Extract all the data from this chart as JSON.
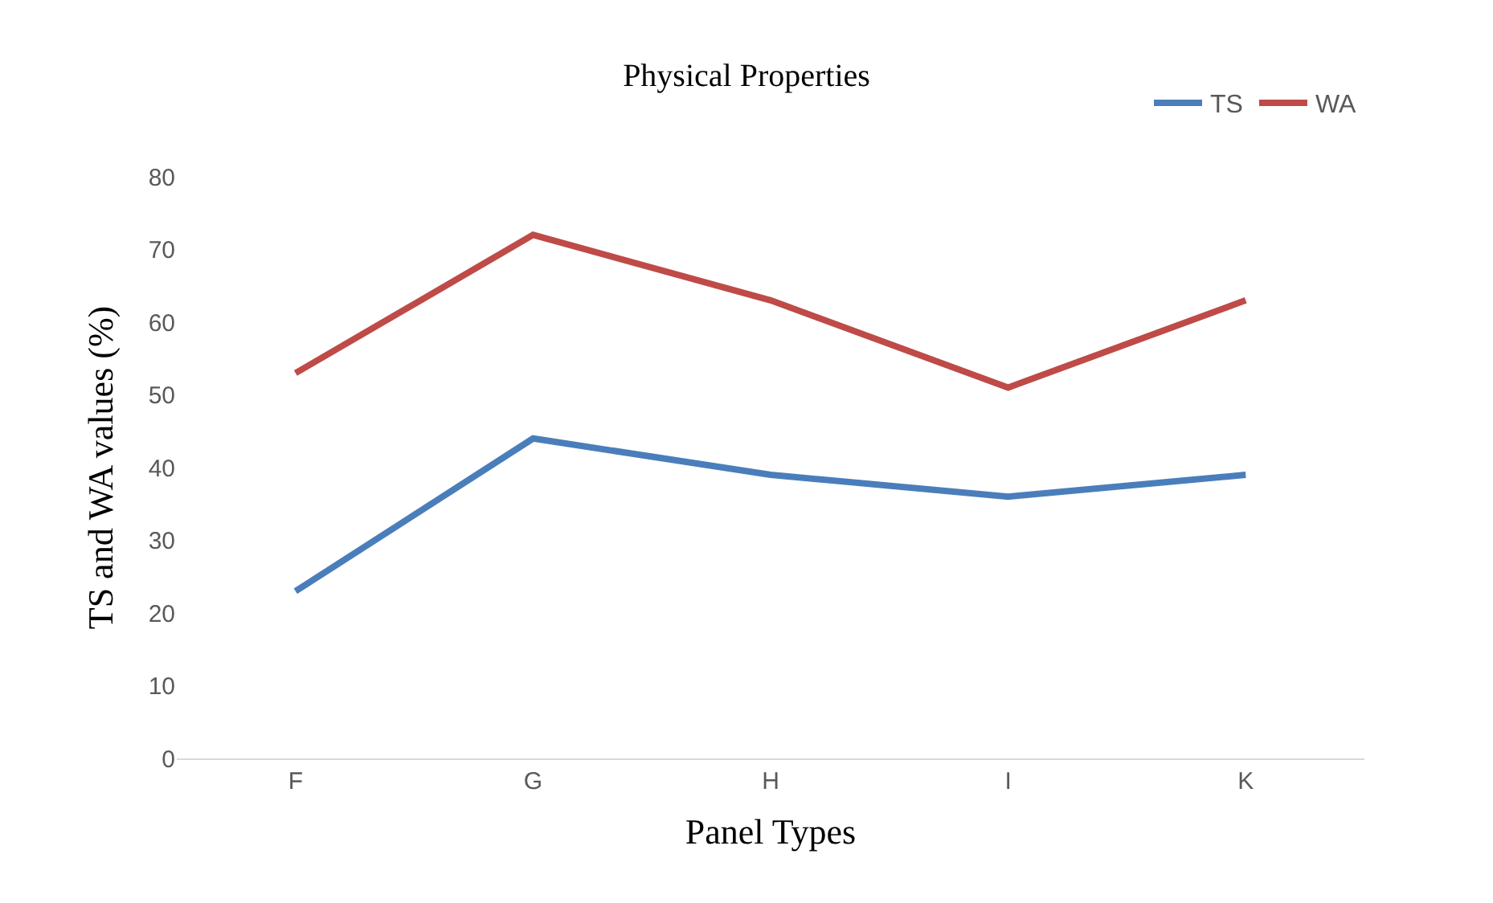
{
  "chart_data": {
    "type": "line",
    "title": "Physical Properties",
    "xlabel": "Panel Types",
    "ylabel": "TS and WA values (%)",
    "categories": [
      "F",
      "G",
      "H",
      "I",
      "K"
    ],
    "series": [
      {
        "name": "TS",
        "color": "#4a7ebb",
        "values": [
          23,
          44,
          39,
          36,
          39
        ]
      },
      {
        "name": "WA",
        "color": "#be4b48",
        "values": [
          53,
          72,
          63,
          51,
          63
        ]
      }
    ],
    "ylim": [
      0,
      80
    ],
    "yticks": [
      0,
      10,
      20,
      30,
      40,
      50,
      60,
      70,
      80
    ],
    "grid": false,
    "legend": "top right",
    "marker": "none",
    "line_style": "solid"
  }
}
